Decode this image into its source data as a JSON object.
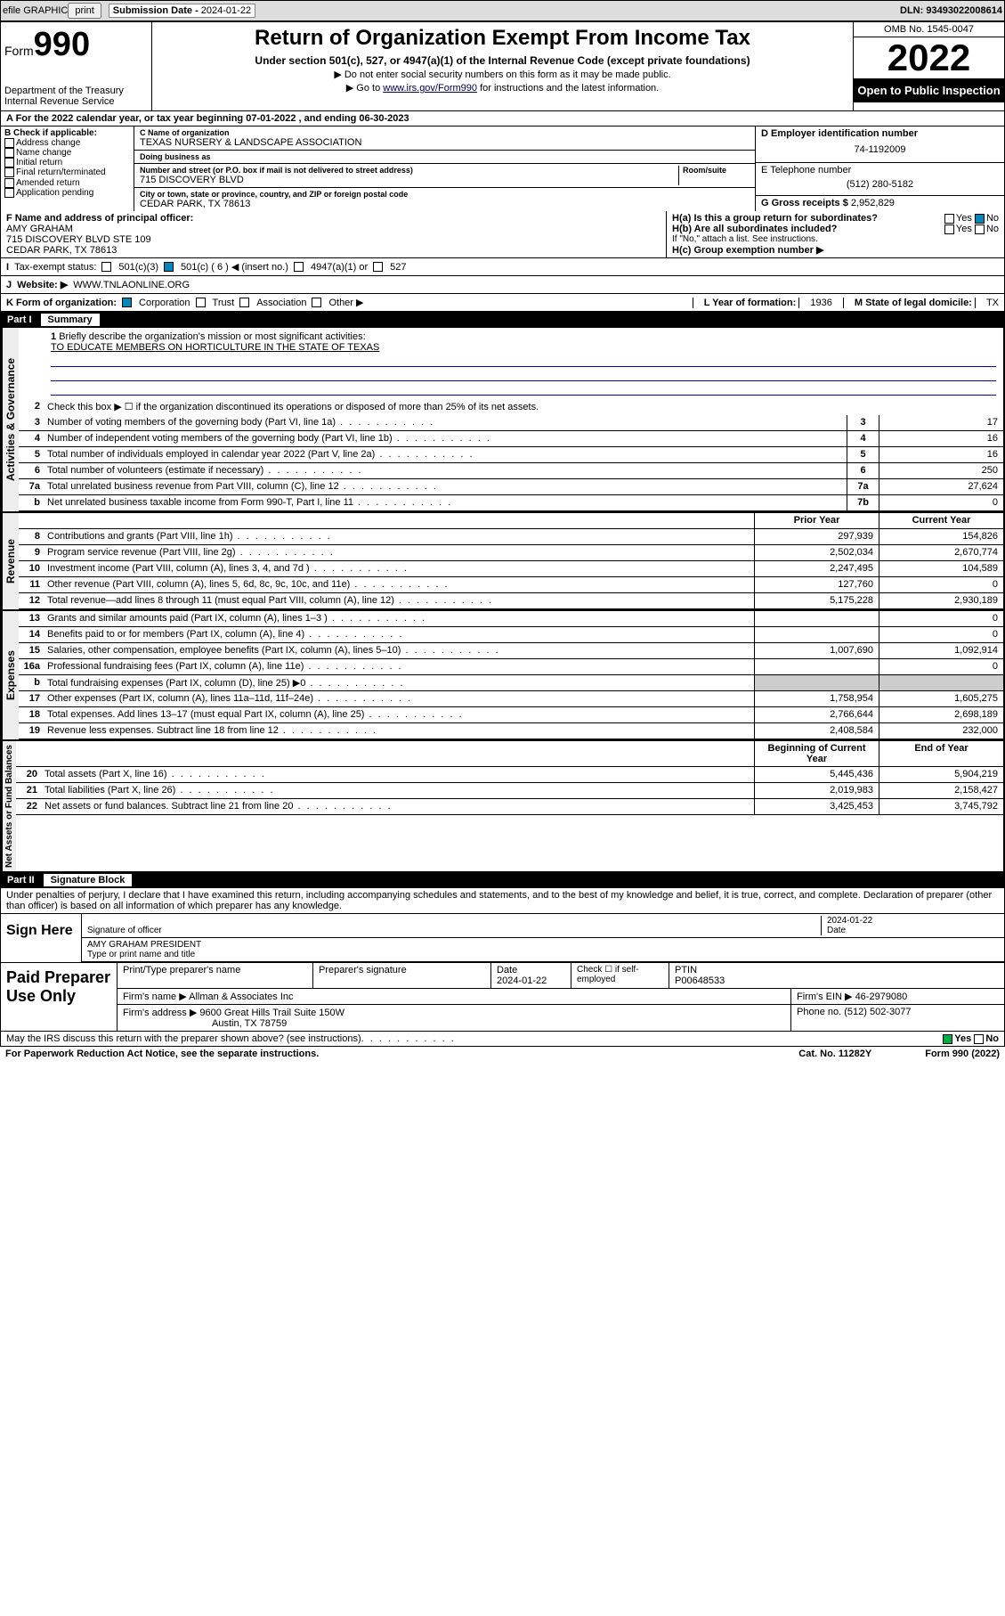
{
  "topbar": {
    "efile": "efile GRAPHIC",
    "print_btn": "print",
    "sub_date_lbl": "Submission Date - ",
    "sub_date": "2024-01-22",
    "dln": "DLN: 93493022008614"
  },
  "header": {
    "form": "Form",
    "form_num": "990",
    "dept": "Department of the Treasury",
    "irs": "Internal Revenue Service",
    "title": "Return of Organization Exempt From Income Tax",
    "subtitle": "Under section 501(c), 527, or 4947(a)(1) of the Internal Revenue Code (except private foundations)",
    "note1": "▶ Do not enter social security numbers on this form as it may be made public.",
    "note2_pre": "▶ Go to ",
    "note2_link": "www.irs.gov/Form990",
    "note2_post": " for instructions and the latest information.",
    "omb": "OMB No. 1545-0047",
    "year": "2022",
    "inspection": "Open to Public Inspection"
  },
  "lineA": {
    "text_pre": "A For the 2022 calendar year, or tax year beginning ",
    "begin": "07-01-2022",
    "mid": " , and ending ",
    "end": "06-30-2023"
  },
  "colB": {
    "hdr": "B Check if applicable:",
    "opts": [
      "Address change",
      "Name change",
      "Initial return",
      "Final return/terminated",
      "Amended return",
      "Application pending"
    ]
  },
  "colC": {
    "name_lbl": "C Name of organization",
    "name": "TEXAS NURSERY & LANDSCAPE ASSOCIATION",
    "dba_lbl": "Doing business as",
    "dba": "",
    "street_lbl": "Number and street (or P.O. box if mail is not delivered to street address)",
    "room_lbl": "Room/suite",
    "street": "715 DISCOVERY BLVD",
    "city_lbl": "City or town, state or province, country, and ZIP or foreign postal code",
    "city": "CEDAR PARK, TX  78613"
  },
  "colD": {
    "ein_lbl": "D Employer identification number",
    "ein": "74-1192009",
    "tel_lbl": "E Telephone number",
    "tel": "(512) 280-5182",
    "gross_lbl": "G Gross receipts $",
    "gross": "2,952,829"
  },
  "rowF": {
    "lbl": "F Name and address of principal officer:",
    "name": "AMY GRAHAM",
    "addr1": "715 DISCOVERY BLVD STE 109",
    "addr2": "CEDAR PARK, TX  78613",
    "ha": "H(a)  Is this a group return for subordinates?",
    "ha_yes": "Yes",
    "ha_no": "No",
    "hb": "H(b)  Are all subordinates included?",
    "hb_note": "If \"No,\" attach a list. See instructions.",
    "hc": "H(c)  Group exemption number ▶"
  },
  "rowI": {
    "lbl": "Tax-exempt status:",
    "o1": "501(c)(3)",
    "o2": "501(c) ( 6 ) ◀ (insert no.)",
    "o3": "4947(a)(1) or",
    "o4": "527"
  },
  "rowJ": {
    "lbl": "Website: ▶",
    "val": "WWW.TNLAONLINE.ORG"
  },
  "rowK": {
    "lbl": "K Form of organization:",
    "o1": "Corporation",
    "o2": "Trust",
    "o3": "Association",
    "o4": "Other ▶",
    "yof_lbl": "L Year of formation:",
    "yof": "1936",
    "dom_lbl": "M State of legal domicile:",
    "dom": "TX"
  },
  "part1": {
    "label": "Part I",
    "title": "Summary",
    "q1": "Briefly describe the organization's mission or most significant activities:",
    "mission": "TO EDUCATE MEMBERS ON HORTICULTURE IN THE STATE OF TEXAS",
    "q2": "Check this box ▶ ☐  if the organization discontinued its operations or disposed of more than 25% of its net assets.",
    "tabs": {
      "activities": "Activities & Governance",
      "revenue": "Revenue",
      "expenses": "Expenses",
      "net": "Net Assets or Fund Balances"
    },
    "hdr_prior": "Prior Year",
    "hdr_current": "Current Year",
    "hdr_boy": "Beginning of Current Year",
    "hdr_eoy": "End of Year",
    "rows_gov": [
      {
        "n": "3",
        "d": "Number of voting members of the governing body (Part VI, line 1a)",
        "b": "3",
        "v": "17"
      },
      {
        "n": "4",
        "d": "Number of independent voting members of the governing body (Part VI, line 1b)",
        "b": "4",
        "v": "16"
      },
      {
        "n": "5",
        "d": "Total number of individuals employed in calendar year 2022 (Part V, line 2a)",
        "b": "5",
        "v": "16"
      },
      {
        "n": "6",
        "d": "Total number of volunteers (estimate if necessary)",
        "b": "6",
        "v": "250"
      },
      {
        "n": "7a",
        "d": "Total unrelated business revenue from Part VIII, column (C), line 12",
        "b": "7a",
        "v": "27,624"
      },
      {
        "n": "b",
        "d": "Net unrelated business taxable income from Form 990-T, Part I, line 11",
        "b": "7b",
        "v": "0"
      }
    ],
    "rows_rev": [
      {
        "n": "8",
        "d": "Contributions and grants (Part VIII, line 1h)",
        "p": "297,939",
        "c": "154,826"
      },
      {
        "n": "9",
        "d": "Program service revenue (Part VIII, line 2g)",
        "p": "2,502,034",
        "c": "2,670,774"
      },
      {
        "n": "10",
        "d": "Investment income (Part VIII, column (A), lines 3, 4, and 7d )",
        "p": "2,247,495",
        "c": "104,589"
      },
      {
        "n": "11",
        "d": "Other revenue (Part VIII, column (A), lines 5, 6d, 8c, 9c, 10c, and 11e)",
        "p": "127,760",
        "c": "0"
      },
      {
        "n": "12",
        "d": "Total revenue—add lines 8 through 11 (must equal Part VIII, column (A), line 12)",
        "p": "5,175,228",
        "c": "2,930,189"
      }
    ],
    "rows_exp": [
      {
        "n": "13",
        "d": "Grants and similar amounts paid (Part IX, column (A), lines 1–3 )",
        "p": "",
        "c": "0"
      },
      {
        "n": "14",
        "d": "Benefits paid to or for members (Part IX, column (A), line 4)",
        "p": "",
        "c": "0"
      },
      {
        "n": "15",
        "d": "Salaries, other compensation, employee benefits (Part IX, column (A), lines 5–10)",
        "p": "1,007,690",
        "c": "1,092,914"
      },
      {
        "n": "16a",
        "d": "Professional fundraising fees (Part IX, column (A), line 11e)",
        "p": "",
        "c": "0"
      },
      {
        "n": "b",
        "d": "Total fundraising expenses (Part IX, column (D), line 25) ▶0",
        "p": "",
        "c": "",
        "shade": true
      },
      {
        "n": "17",
        "d": "Other expenses (Part IX, column (A), lines 11a–11d, 11f–24e)",
        "p": "1,758,954",
        "c": "1,605,275"
      },
      {
        "n": "18",
        "d": "Total expenses. Add lines 13–17 (must equal Part IX, column (A), line 25)",
        "p": "2,766,644",
        "c": "2,698,189"
      },
      {
        "n": "19",
        "d": "Revenue less expenses. Subtract line 18 from line 12",
        "p": "2,408,584",
        "c": "232,000"
      }
    ],
    "rows_net": [
      {
        "n": "20",
        "d": "Total assets (Part X, line 16)",
        "p": "5,445,436",
        "c": "5,904,219"
      },
      {
        "n": "21",
        "d": "Total liabilities (Part X, line 26)",
        "p": "2,019,983",
        "c": "2,158,427"
      },
      {
        "n": "22",
        "d": "Net assets or fund balances. Subtract line 21 from line 20",
        "p": "3,425,453",
        "c": "3,745,792"
      }
    ]
  },
  "part2": {
    "label": "Part II",
    "title": "Signature Block",
    "penalty": "Under penalties of perjury, I declare that I have examined this return, including accompanying schedules and statements, and to the best of my knowledge and belief, it is true, correct, and complete. Declaration of preparer (other than officer) is based on all information of which preparer has any knowledge.",
    "sign_here": "Sign Here",
    "sig_officer": "Signature of officer",
    "sig_date_lbl": "Date",
    "sig_date": "2024-01-22",
    "officer_name": "AMY GRAHAM  PRESIDENT",
    "officer_lbl": "Type or print name and title",
    "paid_prep": "Paid Preparer Use Only",
    "prep_name_lbl": "Print/Type preparer's name",
    "prep_sig_lbl": "Preparer's signature",
    "prep_date_lbl": "Date",
    "prep_date": "2024-01-22",
    "self_emp": "Check ☐ if self-employed",
    "ptin_lbl": "PTIN",
    "ptin": "P00648533",
    "firm_name_lbl": "Firm's name    ▶",
    "firm_name": "Allman & Associates Inc",
    "firm_ein_lbl": "Firm's EIN ▶",
    "firm_ein": "46-2979080",
    "firm_addr_lbl": "Firm's address ▶",
    "firm_addr1": "9600 Great Hills Trail Suite 150W",
    "firm_addr2": "Austin, TX  78759",
    "firm_phone_lbl": "Phone no.",
    "firm_phone": "(512) 502-3077",
    "discuss": "May the IRS discuss this return with the preparer shown above? (see instructions)",
    "yes": "Yes",
    "no": "No"
  },
  "footer": {
    "paperwork": "For Paperwork Reduction Act Notice, see the separate instructions.",
    "cat": "Cat. No. 11282Y",
    "form": "Form 990 (2022)"
  },
  "colors": {
    "link": "#004488",
    "check_blue": "#0088bb",
    "check_green": "#00aa44"
  }
}
